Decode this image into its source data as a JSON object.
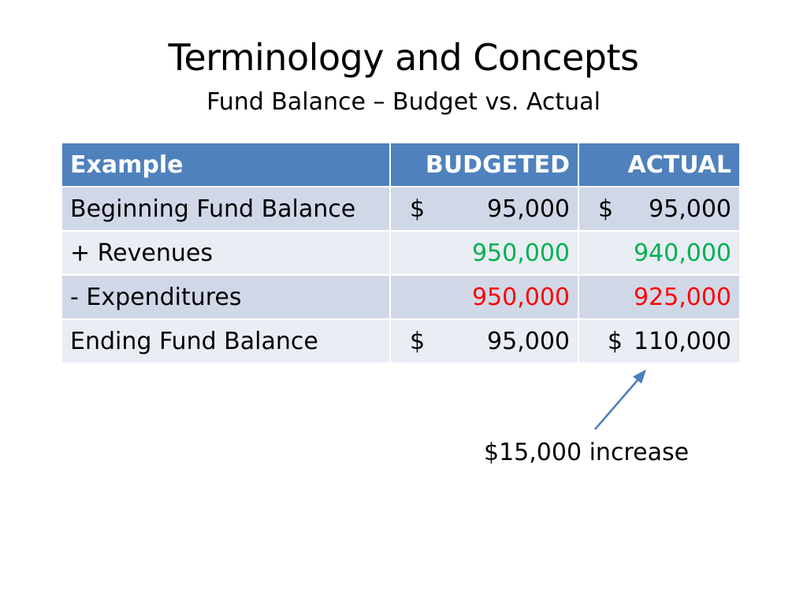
{
  "slide": {
    "title": "Terminology and Concepts",
    "subtitle": "Fund Balance – Budget vs. Actual"
  },
  "table": {
    "headers": [
      "Example",
      "BUDGETED",
      "ACTUAL"
    ],
    "rows": [
      {
        "label": "Beginning Fund Balance",
        "budgeted": "95,000",
        "budgeted_currency": "$",
        "actual": "95,000",
        "actual_currency": "$"
      },
      {
        "label": "+ Revenues",
        "budgeted": "950,000",
        "actual": "940,000"
      },
      {
        "label": "- Expenditures",
        "budgeted": "950,000",
        "actual": "925,000"
      },
      {
        "label": "Ending Fund Balance",
        "budgeted": "95,000",
        "budgeted_currency": "$",
        "actual": "110,000",
        "actual_currency": "$"
      }
    ]
  },
  "annotation": {
    "text": "$15,000 increase"
  },
  "colors": {
    "header_bg": "#4f81bd",
    "revenues_text": "#00b050",
    "expenditures_text": "#ff0000",
    "arrow": "#4a7ebb"
  }
}
